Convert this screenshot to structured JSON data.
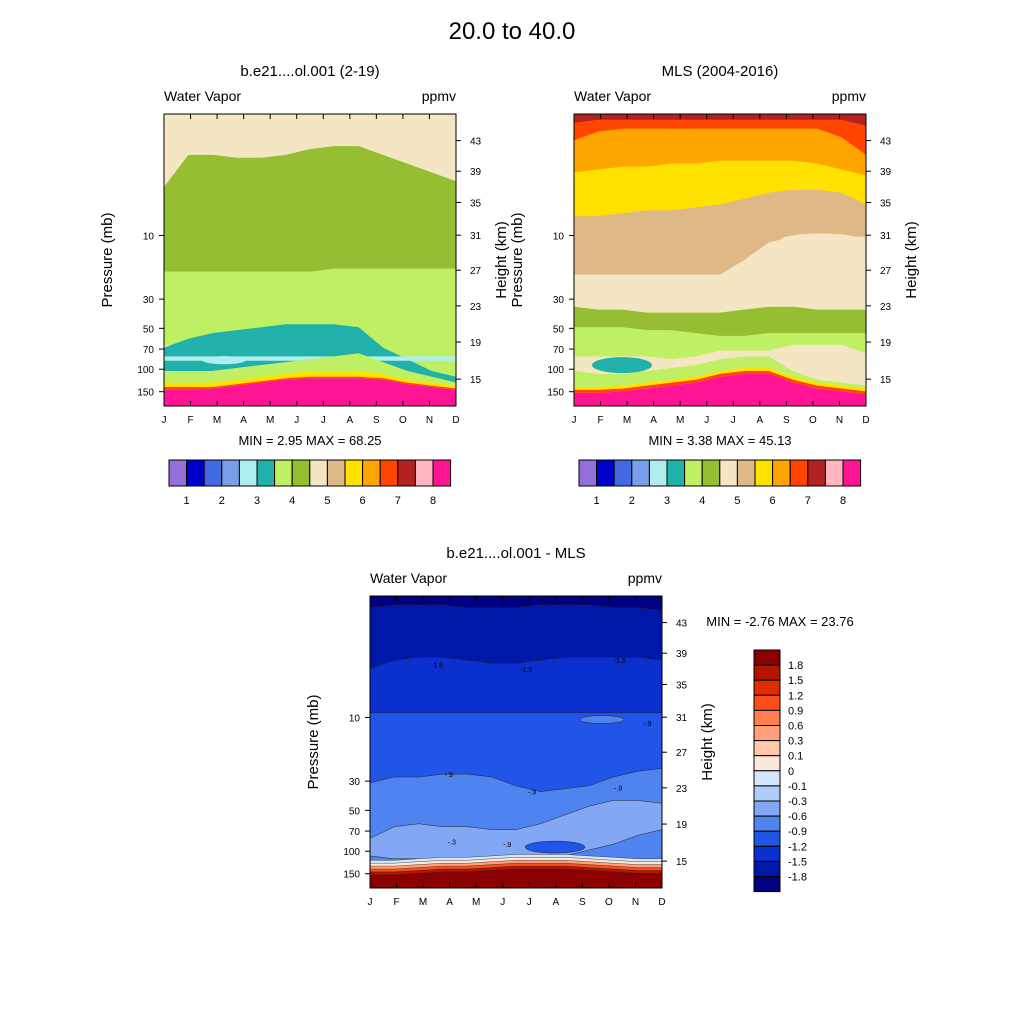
{
  "page_title": "20.0 to  40.0",
  "chart_data": [
    {
      "type": "contour",
      "title": "b.e21....ol.001 (2-19)",
      "left_label": "Water Vapor",
      "right_label": "ppmv",
      "ylabel": "Pressure (mb)",
      "ylabel_right": "Height (km)",
      "x_ticks": [
        "J",
        "F",
        "M",
        "A",
        "M",
        "J",
        "J",
        "A",
        "S",
        "O",
        "N",
        "D"
      ],
      "pressure_ticks": [
        "10",
        "30",
        "50",
        "70",
        "100",
        "150"
      ],
      "height_ticks": [
        "43",
        "39",
        "35",
        "31",
        "27",
        "23",
        "19",
        "15"
      ],
      "stats": "MIN =   2.95  MAX =  68.25",
      "colorbar_labels": [
        "1",
        "2",
        "3",
        "4",
        "5",
        "6",
        "7",
        "8"
      ]
    },
    {
      "type": "contour",
      "title": "MLS (2004-2016)",
      "left_label": "Water Vapor",
      "right_label": "ppmv",
      "ylabel": "Pressure (mb)",
      "ylabel_right": "Height (km)",
      "x_ticks": [
        "J",
        "F",
        "M",
        "A",
        "M",
        "J",
        "J",
        "A",
        "S",
        "O",
        "N",
        "D"
      ],
      "pressure_ticks": [
        "10",
        "30",
        "50",
        "70",
        "100",
        "150"
      ],
      "height_ticks": [
        "43",
        "39",
        "35",
        "31",
        "27",
        "23",
        "19",
        "15"
      ],
      "stats": "MIN =   3.38  MAX =  45.13",
      "colorbar_labels": [
        "1",
        "2",
        "3",
        "4",
        "5",
        "6",
        "7",
        "8"
      ]
    },
    {
      "type": "contour",
      "title": "b.e21....ol.001 - MLS",
      "left_label": "Water Vapor",
      "right_label": "ppmv",
      "ylabel": "Pressure (mb)",
      "ylabel_right": "Height (km)",
      "x_ticks": [
        "J",
        "F",
        "M",
        "A",
        "M",
        "J",
        "J",
        "A",
        "S",
        "O",
        "N",
        "D"
      ],
      "pressure_ticks": [
        "10",
        "30",
        "50",
        "70",
        "100",
        "150"
      ],
      "height_ticks": [
        "43",
        "39",
        "35",
        "31",
        "27",
        "23",
        "19",
        "15"
      ],
      "stats": "MIN =  -2.76  MAX =  23.76",
      "contour_labels": [
        "-1.5",
        "-1.5",
        "-1.5",
        "-.9",
        "-.9",
        "-.9",
        "-.9",
        "-.9",
        "-.3"
      ],
      "colorbar_labels": [
        "1.8",
        "1.5",
        "1.2",
        "0.9",
        "0.6",
        "0.3",
        "0.1",
        "0",
        "-0.1",
        "-0.3",
        "-0.6",
        "-0.9",
        "-1.2",
        "-1.5",
        "-1.8"
      ]
    }
  ],
  "colors": {
    "abs_palette": [
      "#9370DB",
      "#0000CD",
      "#4169E1",
      "#7B9EEB",
      "#AFEEEE",
      "#20B2AA",
      "#BFEF63",
      "#96BE32",
      "#F5E6C3",
      "#DEB887",
      "#FFE100",
      "#FFA500",
      "#FF4500",
      "#B22222",
      "#FFB6C1",
      "#FF1493"
    ],
    "diff_palette": [
      "#8B0000",
      "#B31500",
      "#E02C00",
      "#FF4D1A",
      "#FF7F4D",
      "#FFA07A",
      "#FFC8A8",
      "#FCE8DA",
      "#D6E6FA",
      "#AFCBFA",
      "#82A8F5",
      "#4F84F0",
      "#2055E8",
      "#0A30D0",
      "#0018A8",
      "#000080"
    ]
  }
}
